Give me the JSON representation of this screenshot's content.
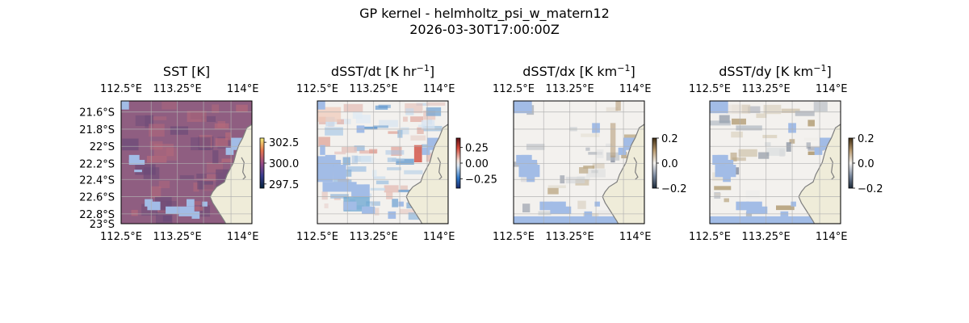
{
  "figure": {
    "suptitle_line1": "GP kernel - helmholtz_psi_w_matern12",
    "suptitle_line2": "2026-03-30T17:00:00Z"
  },
  "colors": {
    "land": "#efecd9",
    "coast": "#7e7e7e",
    "ocean_mask": "#a2bce6",
    "grid": "#b0b0b0",
    "sst_fill": "#8f5e81",
    "sst_light": "#b76a7a",
    "sst_dark": "#6a4a78"
  },
  "chart_data": [
    {
      "type": "heatmap",
      "title": "SST [K]",
      "lon_ticks": [
        "112.5°E",
        "113.25°E",
        "114°E"
      ],
      "lat_ticks": [
        "21.6°S",
        "21.8°S",
        "22°S",
        "22.2°S",
        "22.4°S",
        "22.6°S",
        "22.8°S",
        "23°S"
      ],
      "show_lat_labels": true,
      "colorbar": {
        "ticks": [
          "302.5",
          "300.0",
          "297.5"
        ],
        "values": [
          302.5,
          300.0,
          297.5
        ],
        "range": [
          297.0,
          303.0
        ],
        "cmap": "thermal"
      }
    },
    {
      "type": "heatmap",
      "title_main": "dSST/dt [K hr",
      "title_sup": "−1",
      "title_end": "]",
      "lon_ticks": [
        "112.5°E",
        "113.25°E",
        "114°E"
      ],
      "show_lat_labels": false,
      "colorbar": {
        "ticks": [
          "0.25",
          "0.00",
          "−0.25"
        ],
        "values": [
          0.25,
          0.0,
          -0.25
        ],
        "range": [
          -0.4,
          0.4
        ],
        "cmap": "balance"
      }
    },
    {
      "type": "heatmap",
      "title_main": "dSST/dx [K km",
      "title_sup": "−1",
      "title_end": "]",
      "lon_ticks": [
        "112.5°E",
        "113.25°E",
        "114°E"
      ],
      "show_lat_labels": false,
      "colorbar": {
        "ticks": [
          "0.2",
          "0.0",
          "−0.2"
        ],
        "values": [
          0.2,
          0.0,
          -0.2
        ],
        "range": [
          -0.2,
          0.2
        ],
        "cmap": "diff"
      }
    },
    {
      "type": "heatmap",
      "title_main": "dSST/dy [K km",
      "title_sup": "−1",
      "title_end": "]",
      "lon_ticks": [
        "112.5°E",
        "113.25°E",
        "114°E"
      ],
      "show_lat_labels": false,
      "colorbar": {
        "ticks": [
          "0.2",
          "0.0",
          "−0.2"
        ],
        "values": [
          0.2,
          0.0,
          -0.2
        ],
        "range": [
          -0.2,
          0.2
        ],
        "cmap": "diff"
      }
    }
  ]
}
